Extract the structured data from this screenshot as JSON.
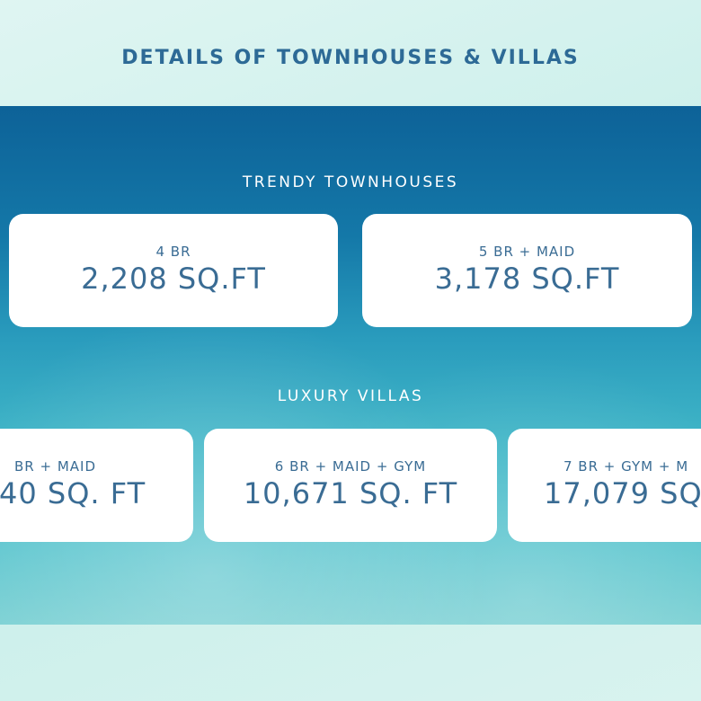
{
  "title": "DETAILS OF TOWNHOUSES & VILLAS",
  "townhouses": {
    "heading": "TRENDY TOWNHOUSES",
    "cards": [
      {
        "label": "4 BR",
        "value": "2,208 SQ.FT"
      },
      {
        "label": "5 BR + MAID",
        "value": "3,178 SQ.FT"
      }
    ]
  },
  "villas": {
    "heading": "LUXURY VILLAS",
    "cards": [
      {
        "label": "BR + MAID",
        "value": "40 SQ. FT"
      },
      {
        "label": "6 BR + MAID + GYM",
        "value": "10,671 SQ. FT"
      },
      {
        "label": "7 BR + GYM + M",
        "value": "17,079 SQ"
      }
    ]
  },
  "colors": {
    "title": "#2d6a96",
    "card_text": "#3a6c94",
    "band_top": "#0d6298",
    "band_bottom": "#7ad0d3"
  }
}
